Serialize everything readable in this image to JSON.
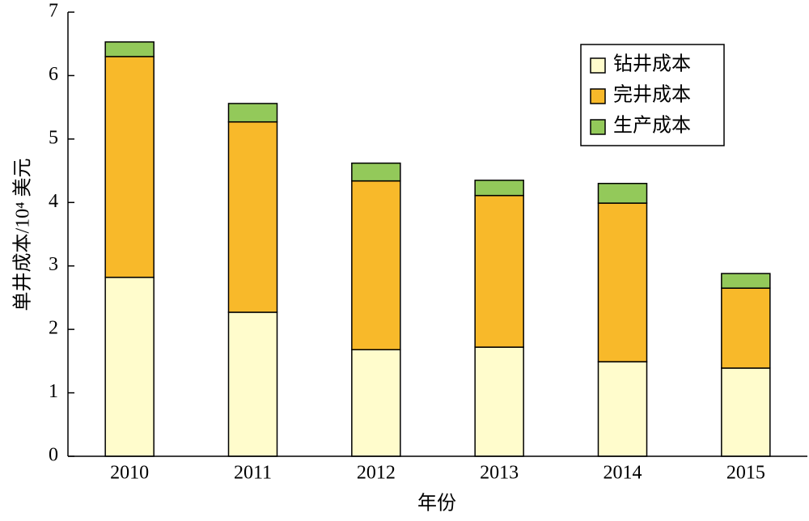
{
  "chart_data": {
    "type": "stacked-bar",
    "x_label": "年份",
    "y_label": "单井成本/10⁴ 美元",
    "categories": [
      "2010",
      "2011",
      "2012",
      "2013",
      "2014",
      "2015"
    ],
    "series": [
      {
        "name": "钻井成本",
        "color": "#fffccc",
        "values": [
          2.82,
          2.27,
          1.68,
          1.72,
          1.49,
          1.39
        ]
      },
      {
        "name": "完井成本",
        "color": "#f8b92a",
        "values": [
          3.48,
          3.0,
          2.66,
          2.39,
          2.5,
          1.26
        ]
      },
      {
        "name": "生产成本",
        "color": "#93c95a",
        "values": [
          0.23,
          0.29,
          0.28,
          0.24,
          0.31,
          0.23
        ]
      }
    ],
    "ylim": [
      0,
      7
    ],
    "yticks": [
      0,
      1,
      2,
      3,
      4,
      5,
      6,
      7
    ],
    "legend": "upper-right"
  }
}
